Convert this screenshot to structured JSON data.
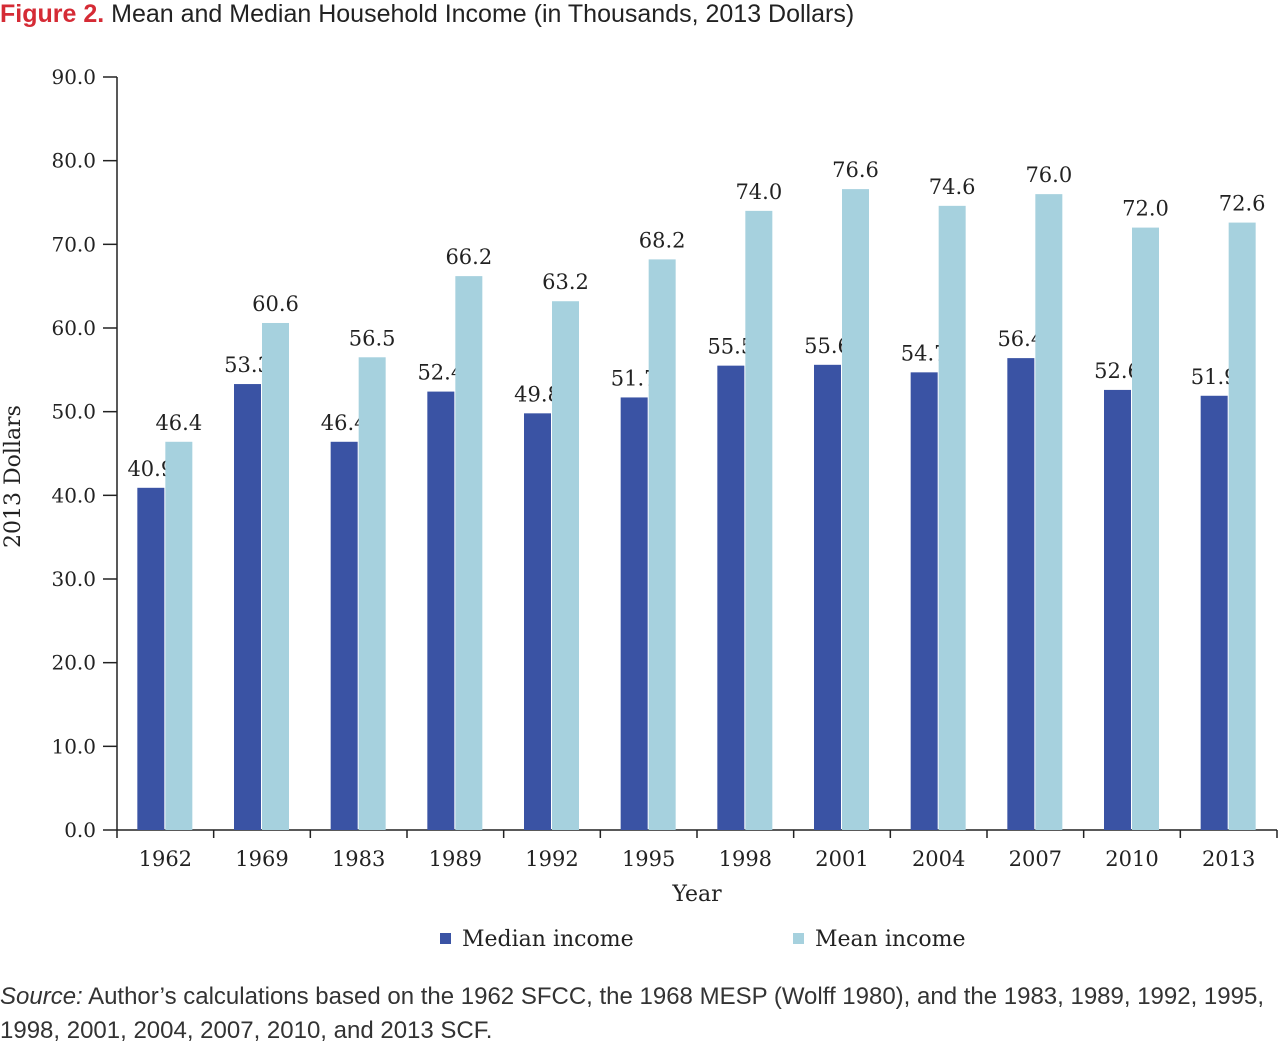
{
  "figure": {
    "label": "Figure 2.",
    "title": "Mean and Median Household Income (in Thousands, 2013 Dollars)"
  },
  "source": {
    "label": "Source:",
    "text": "Author’s calculations based on the 1962 SFCC, the 1968 MESP (Wolff 1980), and the 1983, 1989, 1992, 1995, 1998, 2001, 2004, 2007, 2010, and 2013 SCF."
  },
  "chart_data": {
    "type": "bar",
    "xlabel": "Year",
    "ylabel": "2013 Dollars",
    "ylim": [
      0,
      90
    ],
    "yticks": [
      "0.0",
      "10.0",
      "20.0",
      "30.0",
      "40.0",
      "50.0",
      "60.0",
      "70.0",
      "80.0",
      "90.0"
    ],
    "categories": [
      "1962",
      "1969",
      "1983",
      "1989",
      "1992",
      "1995",
      "1998",
      "2001",
      "2004",
      "2007",
      "2010",
      "2013"
    ],
    "series": [
      {
        "name": "Median income",
        "color": "#3a53a4",
        "values": [
          40.9,
          53.3,
          46.4,
          52.4,
          49.8,
          51.7,
          55.5,
          55.6,
          54.7,
          56.4,
          52.6,
          51.9
        ]
      },
      {
        "name": "Mean income",
        "color": "#a6d1de",
        "values": [
          46.4,
          60.6,
          56.5,
          66.2,
          63.2,
          68.2,
          74.0,
          76.6,
          74.6,
          76.0,
          72.0,
          72.6
        ]
      }
    ],
    "grid": false,
    "legend": "bottom"
  }
}
